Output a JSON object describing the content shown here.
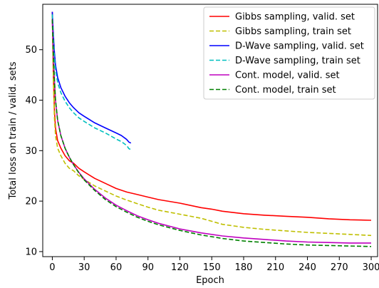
{
  "chart_data": {
    "type": "line",
    "xlabel": "Epoch",
    "ylabel": "Total loss on train / valid. sets",
    "xlim": [
      -9,
      306
    ],
    "ylim": [
      9,
      59
    ],
    "xticks": [
      0,
      30,
      60,
      90,
      120,
      150,
      180,
      210,
      240,
      270,
      300
    ],
    "yticks": [
      10,
      20,
      30,
      40,
      50
    ],
    "grid": false,
    "legend": "top-right",
    "series": [
      {
        "name": "Gibbs sampling, valid. set",
        "color": "#ff0000",
        "dash": "solid",
        "x": [
          0,
          1,
          2,
          3,
          5,
          8,
          12,
          16,
          20,
          25,
          30,
          40,
          50,
          60,
          70,
          80,
          90,
          100,
          120,
          140,
          150,
          160,
          180,
          200,
          220,
          240,
          260,
          280,
          300
        ],
        "y": [
          57.5,
          45,
          38,
          34.5,
          32,
          30.5,
          29,
          28,
          27.5,
          26.5,
          25.8,
          24.5,
          23.5,
          22.5,
          21.8,
          21.3,
          20.8,
          20.3,
          19.6,
          18.7,
          18.4,
          18.0,
          17.5,
          17.2,
          17.0,
          16.8,
          16.5,
          16.3,
          16.2
        ]
      },
      {
        "name": "Gibbs sampling, train set",
        "color": "#bfbf00",
        "dash": "dashed",
        "x": [
          0,
          1,
          2,
          3,
          5,
          8,
          12,
          16,
          20,
          25,
          30,
          40,
          50,
          60,
          70,
          80,
          90,
          100,
          120,
          140,
          150,
          160,
          180,
          200,
          220,
          240,
          260,
          280,
          300
        ],
        "y": [
          57,
          44,
          36.5,
          33,
          30.5,
          29,
          27.5,
          26.5,
          26,
          25,
          24.3,
          23,
          22,
          21,
          20.2,
          19.5,
          18.8,
          18.2,
          17.4,
          16.6,
          16.0,
          15.4,
          14.8,
          14.4,
          14.1,
          13.8,
          13.6,
          13.4,
          13.2
        ]
      },
      {
        "name": "D-Wave sampling, valid. set",
        "color": "#0000ff",
        "dash": "solid",
        "x": [
          0,
          1,
          2,
          3,
          5,
          8,
          12,
          16,
          20,
          25,
          30,
          40,
          50,
          60,
          65,
          70,
          72,
          74
        ],
        "y": [
          57.5,
          53,
          49.5,
          47,
          44.5,
          42.5,
          40.8,
          39.5,
          38.5,
          37.5,
          36.8,
          35.5,
          34.5,
          33.5,
          33.0,
          32.2,
          31.7,
          31.5
        ]
      },
      {
        "name": "D-Wave sampling, train set",
        "color": "#00bfbf",
        "dash": "dashed",
        "x": [
          0,
          1,
          2,
          3,
          5,
          8,
          12,
          16,
          20,
          25,
          30,
          40,
          50,
          60,
          65,
          70,
          72,
          74
        ],
        "y": [
          57,
          52,
          48.5,
          46,
          43.5,
          41.5,
          39.8,
          38.5,
          37.5,
          36.5,
          35.8,
          34.5,
          33.5,
          32.3,
          31.8,
          31.0,
          30.4,
          30.2
        ]
      },
      {
        "name": "Cont. model, valid. set",
        "color": "#bf00bf",
        "dash": "solid",
        "x": [
          0,
          1,
          2,
          3,
          5,
          8,
          12,
          16,
          20,
          25,
          30,
          40,
          50,
          60,
          70,
          80,
          90,
          100,
          120,
          140,
          160,
          180,
          200,
          220,
          240,
          260,
          280,
          300
        ],
        "y": [
          56,
          49,
          44,
          40,
          36,
          33,
          30.5,
          28.7,
          27.2,
          25.7,
          24.4,
          22.3,
          20.6,
          19.2,
          18.1,
          17.1,
          16.3,
          15.6,
          14.5,
          13.7,
          13.1,
          12.7,
          12.4,
          12.1,
          11.9,
          11.8,
          11.7,
          11.7
        ]
      },
      {
        "name": "Cont. model, train set",
        "color": "#008000",
        "dash": "dashed",
        "x": [
          0,
          1,
          2,
          3,
          5,
          8,
          12,
          16,
          20,
          25,
          30,
          40,
          50,
          60,
          70,
          80,
          90,
          100,
          120,
          140,
          160,
          180,
          200,
          220,
          240,
          260,
          280,
          300
        ],
        "y": [
          56,
          49,
          44,
          40,
          36,
          33,
          30.5,
          28.7,
          27.2,
          25.6,
          24.2,
          22.1,
          20.3,
          18.9,
          17.8,
          16.8,
          16.0,
          15.3,
          14.2,
          13.3,
          12.6,
          12.1,
          11.8,
          11.5,
          11.3,
          11.2,
          11.1,
          11.0
        ]
      }
    ]
  }
}
